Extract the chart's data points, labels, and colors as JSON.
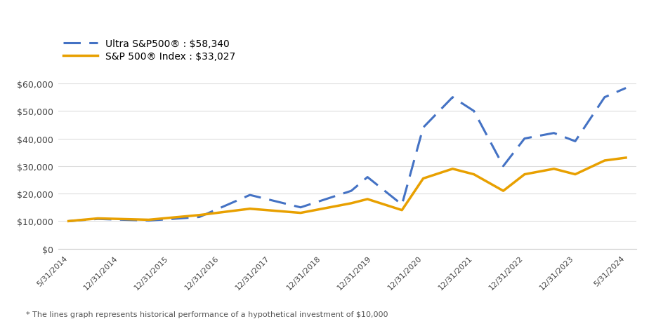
{
  "legend_entries": [
    {
      "label": "Ultra S&P500® : $58,340",
      "color": "#4472C4",
      "linestyle": "dashed"
    },
    {
      "label": "S&P 500® Index : $33,027",
      "color": "#E8A000",
      "linestyle": "solid"
    }
  ],
  "x_labels": [
    "5/31/2014",
    "12/31/2014",
    "12/31/2015",
    "12/31/2016",
    "12/31/2017",
    "12/31/2018",
    "12/31/2019",
    "12/31/2020",
    "12/31/2021",
    "12/31/2022",
    "12/31/2023",
    "5/31/2024"
  ],
  "ultra_x": [
    0,
    0.58,
    1.58,
    2.58,
    3.58,
    4.58,
    5.58,
    5.9,
    6.58,
    7.0,
    7.58,
    8.0,
    8.58,
    9.0,
    9.58,
    10.0,
    10.58,
    11.0
  ],
  "ultra_y": [
    10000,
    10800,
    10200,
    11500,
    19500,
    15000,
    21000,
    26000,
    16000,
    44000,
    55000,
    50000,
    30000,
    40000,
    42000,
    39000,
    55000,
    58340
  ],
  "sp500_x": [
    0,
    0.58,
    1.58,
    2.58,
    3.58,
    4.58,
    5.58,
    5.9,
    6.58,
    7.0,
    7.58,
    8.0,
    8.58,
    9.0,
    9.58,
    10.0,
    10.58,
    11.0
  ],
  "sp500_y": [
    10000,
    11000,
    10500,
    12200,
    14500,
    13000,
    16500,
    18000,
    14000,
    25500,
    29000,
    27000,
    21000,
    27000,
    29000,
    27000,
    32000,
    33027
  ],
  "ylim": [
    0,
    65000
  ],
  "yticks": [
    0,
    10000,
    20000,
    30000,
    40000,
    50000,
    60000
  ],
  "ytick_labels": [
    "$0",
    "$10,000",
    "$20,000",
    "$30,000",
    "$40,000",
    "$50,000",
    "$60,000"
  ],
  "footnote": "* The lines graph represents historical performance of a hypothetical investment of $10,000",
  "bg_color": "#FFFFFF",
  "line_width": 2.2
}
